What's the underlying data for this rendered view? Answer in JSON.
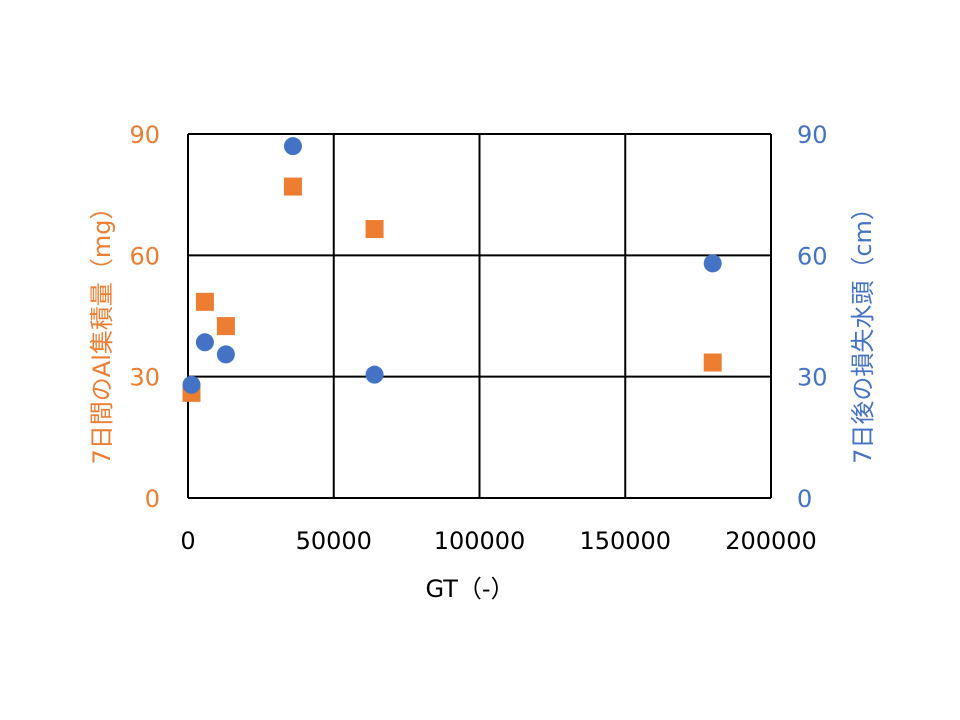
{
  "chart_data": {
    "type": "scatter",
    "xlabel": "GT（-）",
    "ylabel_left": "7日間のAl集積量（mg）",
    "ylabel_right": "7日後の損失水頭（cm）",
    "xlim": [
      0,
      200000
    ],
    "ylim_left": [
      0,
      90
    ],
    "ylim_right": [
      0,
      90
    ],
    "x_ticks": [
      "0",
      "50000",
      "100000",
      "150000",
      "200000"
    ],
    "y_ticks_left": [
      "0",
      "30",
      "60",
      "90"
    ],
    "y_ticks_right": [
      "0",
      "30",
      "60",
      "90"
    ],
    "grid": true,
    "series": [
      {
        "axis": "left",
        "marker": "square",
        "color": "#ED7D31",
        "x": [
          1200,
          5800,
          13000,
          36000,
          64000,
          180000
        ],
        "y": [
          26,
          48.5,
          42.5,
          77,
          66.5,
          33.5
        ]
      },
      {
        "axis": "right",
        "marker": "circle",
        "color": "#4472C4",
        "x": [
          1200,
          5800,
          13000,
          36000,
          64000,
          180000
        ],
        "y": [
          28,
          38.5,
          35.5,
          87,
          30.5,
          58
        ]
      }
    ]
  }
}
